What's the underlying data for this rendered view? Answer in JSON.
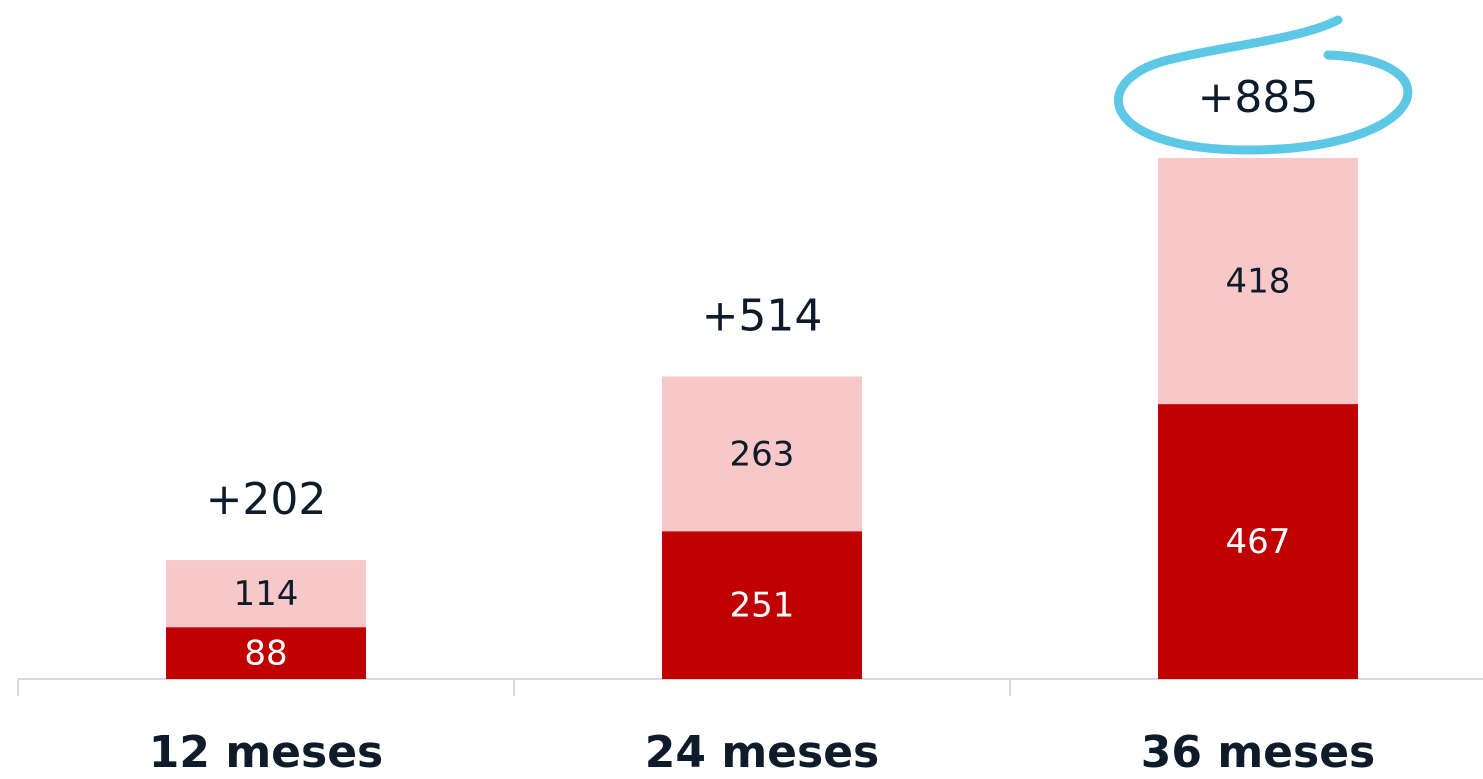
{
  "chart_data": {
    "type": "stacked_bar",
    "categories": [
      "12 meses",
      "24 meses",
      "36 meses"
    ],
    "series": [
      {
        "color": "#c00000",
        "label_color": "#ffffff",
        "values": [
          88,
          251,
          467
        ]
      },
      {
        "color": "#f8c8c9",
        "label_color": "#0d1b2a",
        "values": [
          114,
          263,
          418
        ]
      }
    ],
    "totals": [
      202,
      514,
      885
    ],
    "total_labels": [
      "+202",
      "+514",
      "+885"
    ],
    "highlight_color": "#5cc8e6"
  }
}
